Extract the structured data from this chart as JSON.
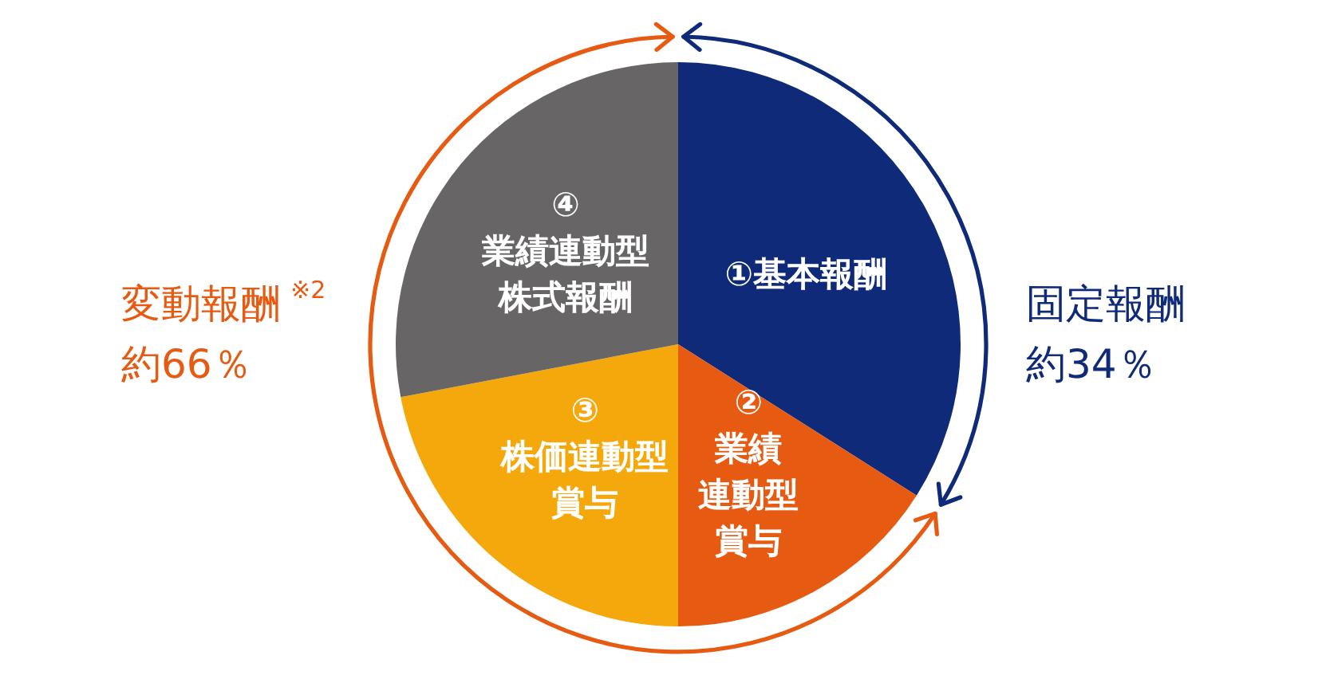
{
  "chart_data": {
    "type": "pie",
    "categories": [
      "①基本報酬",
      "②業績連動型賞与",
      "③株価連動型賞与",
      "④業績連動型株式報酬"
    ],
    "values": [
      34,
      16,
      22,
      28
    ],
    "colors": [
      "#0e2a78",
      "#e65a12",
      "#f4a80c",
      "#676565"
    ],
    "annotations": [
      "固定報酬",
      "約34％",
      "変動報酬$^{※2}$",
      "約66％"
    ]
  }
}
